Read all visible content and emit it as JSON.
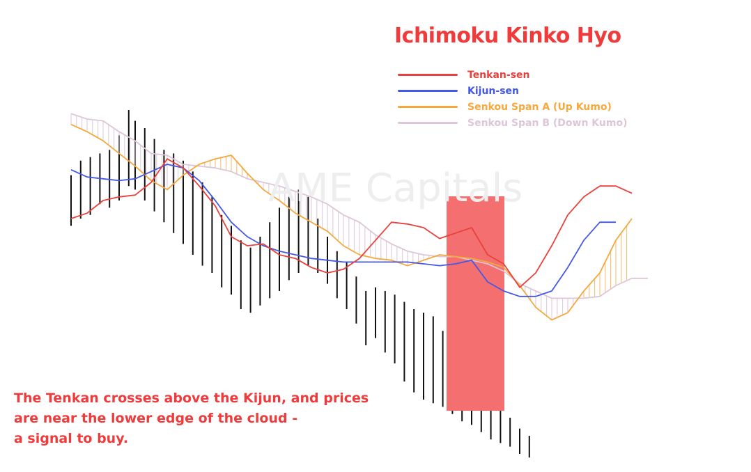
{
  "title": "Ichimoku Kinko Hyo",
  "watermark": "AME Capitals",
  "legend": [
    {
      "label": "Tenkan-sen",
      "color": "#e8413c"
    },
    {
      "label": "Kijun-sen",
      "color": "#4457e6"
    },
    {
      "label": "Senkou Span A (Up Kumo)",
      "color": "#f5a83c"
    },
    {
      "label": "Senkou Span B (Down Kumo)",
      "color": "#dcc6d8"
    }
  ],
  "annotation": {
    "line1": "The Tenkan crosses above the Kijun, and prices",
    "line2": "are near the lower edge of the cloud -",
    "line3": "a signal to buy."
  },
  "colors": {
    "highlight": "#f47070",
    "bars": "#111111",
    "title": "#ef3b3b"
  },
  "chart_data": {
    "type": "line",
    "xlabel": "",
    "ylabel": "",
    "grid": false,
    "legend_position": "top-right",
    "y_inverted_note": "values are relative price levels (higher = higher price)",
    "x": [
      0,
      5,
      10,
      15,
      20,
      25,
      30,
      35,
      40,
      45,
      50,
      55,
      60,
      65,
      70,
      75,
      80,
      85,
      90,
      95,
      100,
      105,
      110,
      115,
      120,
      125,
      130,
      135,
      140,
      145,
      150,
      155,
      160,
      165,
      170,
      175,
      180,
      185,
      190
    ],
    "series": [
      {
        "name": "Tenkan-sen",
        "values": [
          60,
          63,
          70,
          72,
          73,
          80,
          93,
          88,
          78,
          67,
          50,
          45,
          46,
          40,
          38,
          33,
          30,
          32,
          38,
          48,
          58,
          57,
          55,
          49,
          52,
          55,
          40,
          35,
          22,
          30,
          45,
          62,
          72,
          78,
          78,
          74,
          null,
          null,
          null
        ]
      },
      {
        "name": "Kijun-sen",
        "values": [
          87,
          83,
          82,
          81,
          82,
          86,
          90,
          88,
          81,
          70,
          58,
          50,
          45,
          42,
          40,
          38,
          37,
          36,
          36,
          36,
          36,
          36,
          35,
          34,
          35,
          37,
          25,
          20,
          17,
          17,
          20,
          33,
          48,
          58,
          58,
          null,
          null,
          null,
          null
        ]
      },
      {
        "name": "Senkou Span A (Up Kumo)",
        "values": [
          112,
          108,
          103,
          96,
          89,
          81,
          76,
          84,
          90,
          93,
          95,
          85,
          76,
          70,
          63,
          58,
          53,
          45,
          40,
          38,
          37,
          34,
          37,
          40,
          39,
          38,
          36,
          33,
          23,
          11,
          4,
          8,
          20,
          30,
          48,
          60,
          null,
          null,
          null
        ]
      },
      {
        "name": "Senkou Span B (Down Kumo)",
        "values": [
          118,
          115,
          114,
          108,
          103,
          96,
          95,
          90,
          89,
          88,
          86,
          82,
          80,
          78,
          75,
          72,
          68,
          62,
          58,
          51,
          46,
          42,
          40,
          39,
          39,
          37,
          35,
          31,
          24,
          20,
          16,
          16,
          16,
          17,
          23,
          27,
          27,
          null,
          null
        ]
      }
    ],
    "price_bars": [
      [
        0,
        56,
        84
      ],
      [
        3,
        60,
        92
      ],
      [
        6,
        62,
        94
      ],
      [
        9,
        68,
        96
      ],
      [
        12,
        66,
        98
      ],
      [
        15,
        70,
        106
      ],
      [
        18,
        78,
        120
      ],
      [
        20,
        76,
        114
      ],
      [
        23,
        70,
        110
      ],
      [
        26,
        64,
        104
      ],
      [
        29,
        58,
        98
      ],
      [
        32,
        52,
        96
      ],
      [
        35,
        46,
        92
      ],
      [
        38,
        40,
        86
      ],
      [
        41,
        34,
        80
      ],
      [
        44,
        30,
        72
      ],
      [
        47,
        22,
        62
      ],
      [
        50,
        18,
        56
      ],
      [
        53,
        10,
        48
      ],
      [
        56,
        8,
        44
      ],
      [
        59,
        12,
        50
      ],
      [
        62,
        16,
        58
      ],
      [
        65,
        20,
        66
      ],
      [
        68,
        26,
        72
      ],
      [
        71,
        30,
        76
      ],
      [
        74,
        34,
        72
      ],
      [
        77,
        30,
        60
      ],
      [
        80,
        24,
        50
      ],
      [
        83,
        16,
        42
      ],
      [
        86,
        10,
        36
      ],
      [
        89,
        2,
        28
      ],
      [
        92,
        -10,
        20
      ],
      [
        95,
        -6,
        22
      ],
      [
        98,
        -14,
        20
      ],
      [
        101,
        -20,
        18
      ],
      [
        104,
        -30,
        14
      ],
      [
        107,
        -36,
        10
      ],
      [
        110,
        -40,
        8
      ],
      [
        113,
        -42,
        6
      ],
      [
        116,
        -44,
        -2
      ],
      [
        119,
        -48,
        -8
      ],
      [
        122,
        -52,
        -16
      ],
      [
        125,
        -54,
        -22
      ],
      [
        128,
        -58,
        -28
      ],
      [
        131,
        -62,
        -38
      ],
      [
        134,
        -64,
        -44
      ],
      [
        137,
        -66,
        -50
      ],
      [
        140,
        -70,
        -56
      ],
      [
        143,
        -72,
        -60
      ]
    ]
  }
}
